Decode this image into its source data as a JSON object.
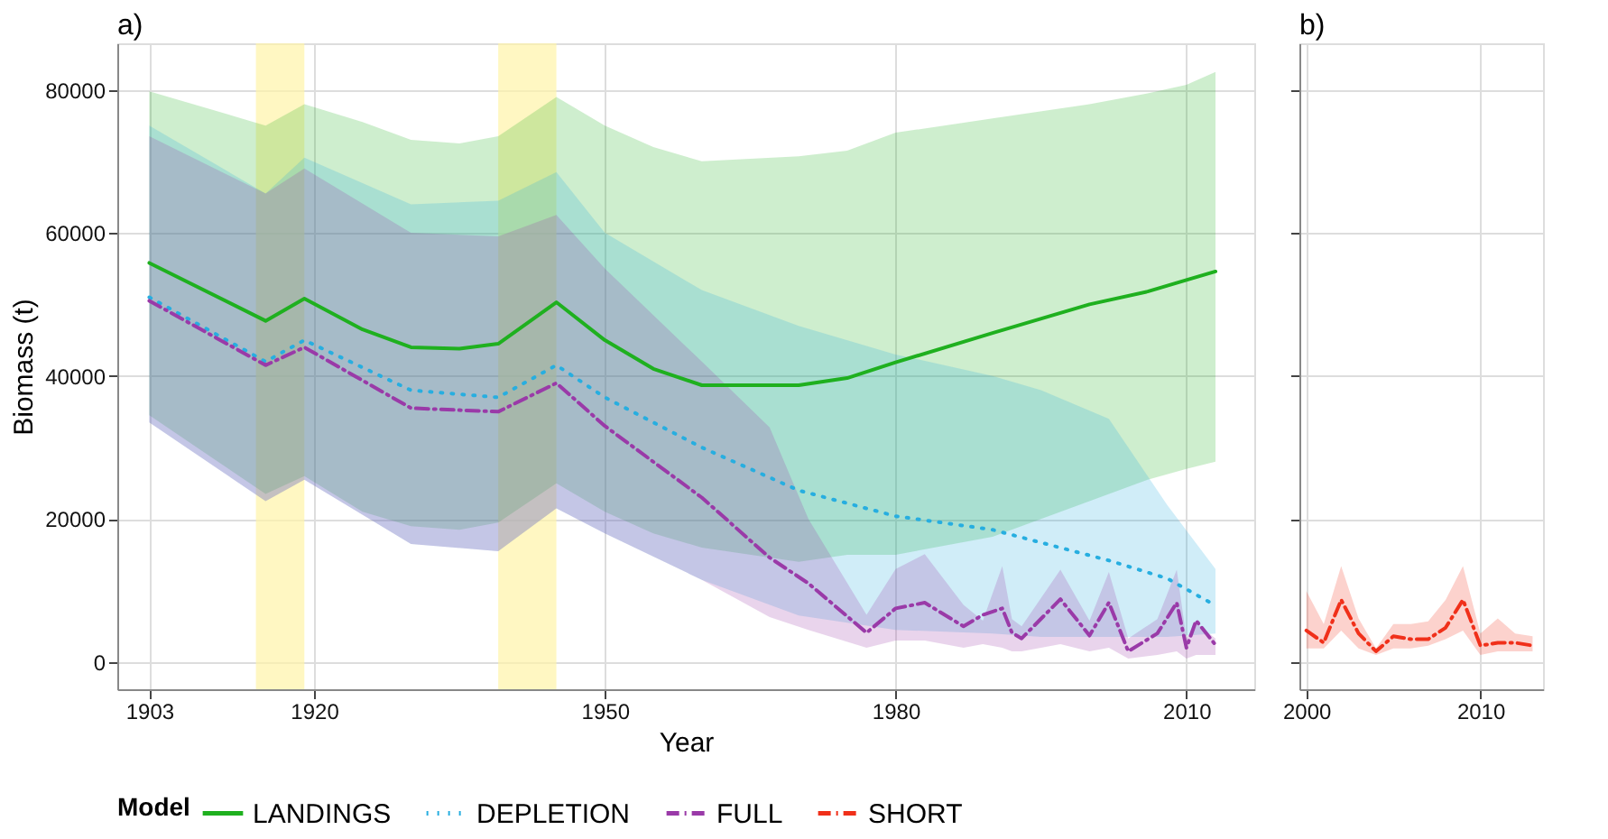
{
  "chart_data": [
    {
      "type": "line",
      "title": "a)",
      "xlabel": "Year",
      "ylabel": "Biomass (t)",
      "legend_title": "Model",
      "legend": "bottom",
      "grid": true,
      "xlim": [
        1899.7,
        2017
      ],
      "xticks": [
        1903,
        1920,
        1950,
        1980,
        2010
      ],
      "ylim": [
        -3800,
        86500
      ],
      "yticks": [
        0,
        20000,
        40000,
        60000,
        80000
      ],
      "bands": [
        {
          "axis": "x",
          "from": 1914,
          "to": 1919,
          "color": "#fff3a8"
        },
        {
          "axis": "x",
          "from": 1939,
          "to": 1945,
          "color": "#fff3a8"
        }
      ],
      "series": [
        {
          "name": "LANDINGS",
          "color": "#1fb01f",
          "line_style": "solid",
          "x": [
            1903,
            1915,
            1919,
            1925,
            1930,
            1935,
            1939,
            1945,
            1950,
            1955,
            1960,
            1970,
            1975,
            1980,
            1990,
            2000,
            2006,
            2010,
            2013
          ],
          "values": [
            55800,
            47700,
            50800,
            46500,
            44000,
            43800,
            44500,
            50300,
            45000,
            41000,
            38700,
            38700,
            39700,
            41900,
            46000,
            50000,
            51800,
            53400,
            54600
          ],
          "lower": [
            34500,
            23500,
            26000,
            21000,
            19000,
            18500,
            19500,
            25000,
            21000,
            18000,
            16000,
            14000,
            15000,
            15000,
            17500,
            22500,
            25500,
            27000,
            28000
          ],
          "upper": [
            79800,
            75000,
            78000,
            75500,
            73000,
            72500,
            73500,
            79000,
            75000,
            72000,
            70000,
            70700,
            71500,
            74000,
            76000,
            78000,
            79500,
            80700,
            82500
          ]
        },
        {
          "name": "DEPLETION",
          "color": "#27aee0",
          "line_style": "dotted",
          "x": [
            1903,
            1915,
            1919,
            1930,
            1939,
            1945,
            1950,
            1960,
            1970,
            1980,
            1990,
            1995,
            2002,
            2008,
            2013
          ],
          "values": [
            51000,
            42000,
            45000,
            38000,
            37000,
            41500,
            37000,
            30000,
            24000,
            20400,
            18500,
            16700,
            14200,
            11700,
            7900
          ],
          "lower": [
            33500,
            22500,
            25500,
            16500,
            15500,
            21500,
            18000,
            11500,
            6500,
            4500,
            4000,
            3500,
            3500,
            3500,
            4000
          ],
          "upper": [
            75000,
            65500,
            70500,
            64000,
            64500,
            68500,
            60000,
            52000,
            47000,
            43000,
            40000,
            38000,
            34000,
            22000,
            13000
          ]
        },
        {
          "name": "FULL",
          "color": "#9a3aa8",
          "line_style": "dashed",
          "x": [
            1903,
            1915,
            1919,
            1930,
            1939,
            1945,
            1950,
            1960,
            1967,
            1971,
            1977,
            1980,
            1983,
            1987,
            1989,
            1991,
            1992,
            1993,
            1997,
            2000,
            2002,
            2004,
            2007,
            2009,
            2010,
            2011,
            2013
          ],
          "values": [
            50500,
            41500,
            44000,
            35500,
            35000,
            39000,
            33000,
            23000,
            14600,
            11000,
            4100,
            7500,
            8300,
            5000,
            6600,
            7500,
            4100,
            3300,
            8800,
            3700,
            8300,
            1500,
            4000,
            8300,
            2000,
            5800,
            2400
          ],
          "lower": [
            33500,
            22500,
            25500,
            16500,
            15500,
            21500,
            18000,
            11500,
            6300,
            4500,
            2000,
            3000,
            3000,
            2000,
            2500,
            2000,
            1500,
            1500,
            2500,
            1500,
            2000,
            500,
            1000,
            1500,
            500,
            1000,
            1000
          ],
          "upper": [
            73500,
            65500,
            69000,
            60000,
            59500,
            62500,
            55000,
            42000,
            32800,
            20000,
            6600,
            13000,
            15100,
            8000,
            5800,
            13400,
            6000,
            5000,
            12900,
            5800,
            12600,
            3300,
            6000,
            12900,
            3300,
            5400,
            3300
          ]
        }
      ]
    },
    {
      "type": "line",
      "title": "b)",
      "grid": true,
      "tick_labels": "x",
      "xlim": [
        1999.6,
        2013.6
      ],
      "xticks": [
        2000,
        2010
      ],
      "ylim": [
        -3800,
        86500
      ],
      "yticks": [
        0,
        20000,
        40000,
        60000,
        80000
      ],
      "series": [
        {
          "name": "SHORT",
          "color": "#f0301a",
          "line_style": "dashed",
          "x": [
            2000,
            2001,
            2002,
            2003,
            2004,
            2005,
            2006,
            2007,
            2008,
            2009,
            2010,
            2011,
            2012,
            2013
          ],
          "values": [
            4400,
            2700,
            8700,
            4000,
            1500,
            3600,
            3200,
            3200,
            4800,
            8700,
            2300,
            2700,
            2700,
            2300
          ],
          "lower": [
            1900,
            1900,
            4400,
            1900,
            1000,
            1900,
            1900,
            2300,
            3200,
            4400,
            1000,
            1500,
            1500,
            1500
          ],
          "upper": [
            9900,
            5300,
            13400,
            6100,
            1900,
            5300,
            5300,
            5700,
            8700,
            13400,
            4000,
            6100,
            4000,
            3600
          ]
        }
      ]
    }
  ]
}
